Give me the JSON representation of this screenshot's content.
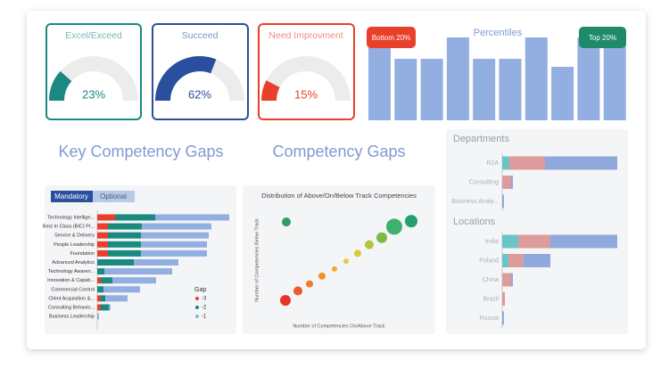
{
  "headings": [
    "Key Competency Gaps",
    "Competency Gaps"
  ],
  "tabs": [
    "Mandatory",
    "Optional"
  ],
  "chart_data": [
    {
      "type": "gauge",
      "title": "Excel/Exceed",
      "value": 23,
      "value_label": "23%",
      "lim": [
        0,
        100
      ],
      "color": "#1a8a80"
    },
    {
      "type": "gauge",
      "title": "Succeed",
      "value": 62,
      "value_label": "62%",
      "lim": [
        0,
        100
      ],
      "color": "#2a4f9e"
    },
    {
      "type": "gauge",
      "title": "Need Improvment",
      "value": 15,
      "value_label": "15%",
      "lim": [
        0,
        100
      ],
      "color": "#e8402a"
    },
    {
      "type": "bar",
      "title": "Percentiles",
      "categories": [
        null,
        null,
        null,
        null,
        null,
        null,
        null,
        null,
        null,
        null
      ],
      "values": [
        93,
        69,
        69,
        93,
        69,
        69,
        93,
        60,
        93,
        93
      ],
      "ylim": [
        0,
        100
      ],
      "color": "#93aee0",
      "annotations": [
        {
          "text": "Bottom 20%",
          "color": "#e8402a"
        },
        {
          "text": "Top 20%",
          "color": "#1f8a6a"
        }
      ]
    },
    {
      "type": "stacked_hbar",
      "legend_title": "Gap",
      "categories": [
        "Technology Intellige...",
        "Best In Class (BIC) Pr...",
        "Service & Delivery",
        "People Leadership",
        "Foundation",
        "Advanced Analytics",
        "Technology Awaren...",
        "Innovation & Capab...",
        "Commercial Control",
        "Client Acquisition &...",
        "Consulting Behavio...",
        "Business Leadership"
      ],
      "xlim": [
        0,
        15
      ],
      "series": [
        {
          "name": "-3",
          "color": "#e8402a",
          "values": [
            2,
            1.2,
            1.2,
            1.2,
            1.2,
            0,
            0,
            0.4,
            0,
            0.4,
            0.4,
            0
          ]
        },
        {
          "name": "-2",
          "color": "#1a8a80",
          "values": [
            4.5,
            3.8,
            3.7,
            3.7,
            3.7,
            4.1,
            0.8,
            1.3,
            0.7,
            0.5,
            0.9,
            0
          ]
        },
        {
          "name": "-1",
          "color": "#93aee0",
          "values": [
            8.3,
            7.8,
            7.6,
            7.4,
            7.4,
            5,
            7.6,
            4.9,
            4.1,
            2.5,
            0.2,
            0.2
          ]
        }
      ]
    },
    {
      "type": "scatter",
      "title": "Distribution of Above/On/Below Track Competencies",
      "xlabel": "Number of Competencies On/Above Track",
      "ylabel": "Number of Competencies Below Track",
      "xlim": [
        0,
        18
      ],
      "ylim": [
        0,
        15
      ],
      "x": [
        2.1,
        2.0,
        3.4,
        4.7,
        6.1,
        7.5,
        8.8,
        10.1,
        11.4,
        12.8,
        14.2,
        16.1
      ],
      "values": [
        12.6,
        2.6,
        3.8,
        4.7,
        5.7,
        6.6,
        7.6,
        8.6,
        9.7,
        10.6,
        12.0,
        12.7
      ],
      "sizes": [
        5,
        6,
        5,
        4,
        4,
        3,
        3,
        4,
        5,
        6,
        9,
        7
      ],
      "colors": [
        "#2e9e5e",
        "#e8342a",
        "#ec5a2a",
        "#ef7a30",
        "#f09030",
        "#f2a83a",
        "#eec23c",
        "#d8c83a",
        "#b5c43a",
        "#7dba45",
        "#3fb070",
        "#22a070"
      ]
    },
    {
      "type": "stacked_hbar",
      "title": "Departments",
      "categories": [
        "R2A",
        "Consulting",
        "Business Analy..."
      ],
      "xlim": [
        0,
        13
      ],
      "series": [
        {
          "color": "#6cc5c5",
          "values": [
            0.8,
            0,
            0
          ]
        },
        {
          "color": "#dc9c9c",
          "values": [
            4,
            1,
            0
          ]
        },
        {
          "color": "#90a9dc",
          "values": [
            8.1,
            0.2,
            0.2
          ]
        }
      ]
    },
    {
      "type": "stacked_hbar",
      "title": "Locations",
      "categories": [
        "India",
        "Poland",
        "China",
        "Brazil",
        "Russia"
      ],
      "xlim": [
        0,
        13
      ],
      "series": [
        {
          "color": "#6cc5c5",
          "values": [
            1.8,
            0.7,
            0,
            0,
            0
          ]
        },
        {
          "color": "#dc9c9c",
          "values": [
            3.6,
            1.7,
            1.0,
            0.3,
            0
          ]
        },
        {
          "color": "#90a9dc",
          "values": [
            7.5,
            3.0,
            0.2,
            0,
            0.2
          ]
        }
      ]
    }
  ]
}
